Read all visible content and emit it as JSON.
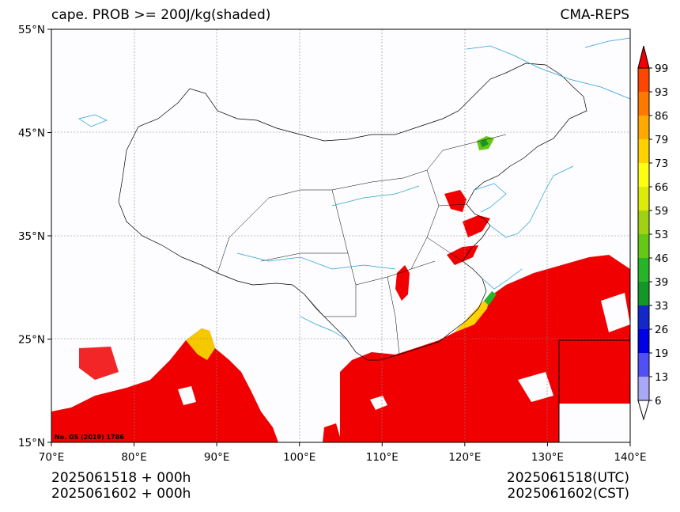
{
  "title_left": "cape. PROB >= 200J/kg(shaded)",
  "title_right": "CMA-REPS",
  "watermark": "No. GS (2019) 1786",
  "axes": {
    "x_ticks": [
      "70°E",
      "80°E",
      "90°E",
      "100°E",
      "110°E",
      "120°E",
      "130°E",
      "140°E"
    ],
    "y_ticks": [
      "55°N",
      "45°N",
      "35°N",
      "25°N",
      "15°N"
    ],
    "lon_range": [
      70,
      140
    ],
    "lat_range": [
      15,
      55
    ],
    "grid": true
  },
  "colorbar": {
    "levels": [
      "6",
      "13",
      "19",
      "26",
      "33",
      "39",
      "46",
      "53",
      "59",
      "66",
      "73",
      "79",
      "86",
      "93",
      "99"
    ],
    "colors": [
      "#ffffff",
      "#a8a8f5",
      "#5050f5",
      "#0000e6",
      "#1428c8",
      "#149628",
      "#28b428",
      "#64c814",
      "#a0d214",
      "#dceb0a",
      "#ffff14",
      "#ffd200",
      "#ffaa00",
      "#ff7800",
      "#ff4600",
      "#f00000"
    ],
    "extend": "both"
  },
  "footer": {
    "left_line1": "2025061518  +  000h",
    "left_line2": "2025061602  +  000h",
    "right_line1": "2025061518(UTC)",
    "right_line2": "2025061602(CST)"
  },
  "colors": {
    "shade_high": "#f00000",
    "coast": "#22a0dc",
    "border": "#000000",
    "grid": "#888888"
  }
}
